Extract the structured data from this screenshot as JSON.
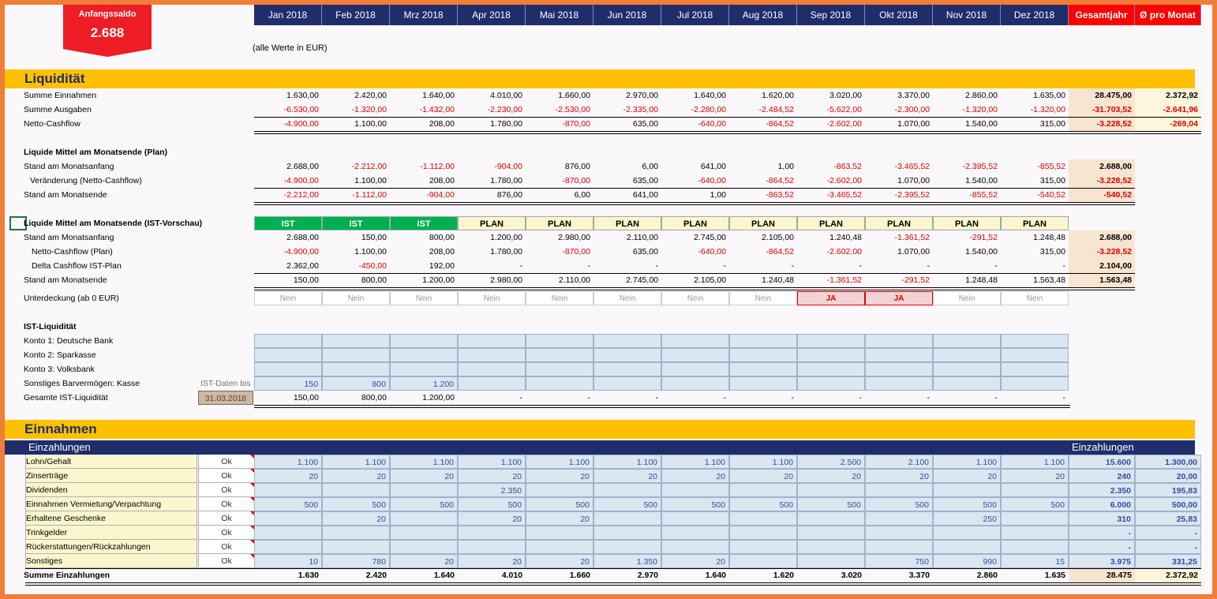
{
  "saldo": {
    "title": "Anfangssaldo",
    "value": "2.688"
  },
  "headers": [
    "Jan 2018",
    "Feb 2018",
    "Mrz 2018",
    "Apr 2018",
    "Mai 2018",
    "Jun 2018",
    "Jul 2018",
    "Aug 2018",
    "Sep 2018",
    "Okt 2018",
    "Nov 2018",
    "Dez 2018"
  ],
  "header_total": "Gesamtjahr",
  "header_avg": "Ø pro Monat",
  "note": "(alle Werte in EUR)",
  "liq": {
    "title": "Liquidität",
    "rows": [
      {
        "label": "Summe Einnahmen",
        "vals": [
          "1.630,00",
          "2.420,00",
          "1.640,00",
          "4.010,00",
          "1.660,00",
          "2.970,00",
          "1.640,00",
          "1.620,00",
          "3.020,00",
          "3.370,00",
          "2.860,00",
          "1.635,00"
        ],
        "total": "28.475,00",
        "avg": "2.372,92"
      },
      {
        "label": "Summe Ausgaben",
        "vals": [
          "-6.530,00",
          "-1.320,00",
          "-1.432,00",
          "-2.230,00",
          "-2.530,00",
          "-2.335,00",
          "-2.280,00",
          "-2.484,52",
          "-5.622,00",
          "-2.300,00",
          "-1.320,00",
          "-1.320,00"
        ],
        "total": "-31.703,52",
        "avg": "-2.641,96"
      },
      {
        "label": "Netto-Cashflow",
        "vals": [
          "-4.900,00",
          "1.100,00",
          "208,00",
          "1.780,00",
          "-870,00",
          "635,00",
          "-640,00",
          "-864,52",
          "-2.602,00",
          "1.070,00",
          "1.540,00",
          "315,00"
        ],
        "total": "-3.228,52",
        "avg": "-269,04"
      }
    ]
  },
  "plan": {
    "title": "Liquide Mittel am Monatsende (Plan)",
    "rows": [
      {
        "label": "Stand am Monatsanfang",
        "vals": [
          "2.688,00",
          "-2.212,00",
          "-1.112,00",
          "-904,00",
          "876,00",
          "6,00",
          "641,00",
          "1,00",
          "-863,52",
          "-3.465,52",
          "-2.395,52",
          "-855,52"
        ],
        "total": "2.688,00"
      },
      {
        "label": "Veränderung (Netto-Cashflow)",
        "vals": [
          "-4.900,00",
          "1.100,00",
          "208,00",
          "1.780,00",
          "-870,00",
          "635,00",
          "-640,00",
          "-864,52",
          "-2.602,00",
          "1.070,00",
          "1.540,00",
          "315,00"
        ],
        "total": "-3.228,52"
      },
      {
        "label": "Stand am Monatsende",
        "vals": [
          "-2.212,00",
          "-1.112,00",
          "-904,00",
          "876,00",
          "6,00",
          "641,00",
          "1,00",
          "-863,52",
          "-3.465,52",
          "-2.395,52",
          "-855,52",
          "-540,52"
        ],
        "total": "-540,52"
      }
    ]
  },
  "vorschau": {
    "title": "Liquide Mittel am Monatsende (IST-Vorschau)",
    "status": [
      "IST",
      "IST",
      "IST",
      "PLAN",
      "PLAN",
      "PLAN",
      "PLAN",
      "PLAN",
      "PLAN",
      "PLAN",
      "PLAN",
      "PLAN"
    ],
    "rows": [
      {
        "label": "Stand am Monatsanfang",
        "vals": [
          "2.688,00",
          "150,00",
          "800,00",
          "1.200,00",
          "2.980,00",
          "2.110,00",
          "2.745,00",
          "2.105,00",
          "1.240,48",
          "-1.361,52",
          "-291,52",
          "1.248,48"
        ],
        "total": "2.688,00"
      },
      {
        "label": "Netto-Cashflow (Plan)",
        "vals": [
          "-4.900,00",
          "1.100,00",
          "208,00",
          "1.780,00",
          "-870,00",
          "635,00",
          "-640,00",
          "-864,52",
          "-2.602,00",
          "1.070,00",
          "1.540,00",
          "315,00"
        ],
        "total": "-3.228,52"
      },
      {
        "label": "Delta Cashflow IST-Plan",
        "vals": [
          "2.362,00",
          "-450,00",
          "192,00",
          "-",
          "-",
          "-",
          "-",
          "-",
          "-",
          "-",
          "-",
          "-"
        ],
        "total": "2.104,00"
      },
      {
        "label": "Stand am Monatsende",
        "vals": [
          "150,00",
          "800,00",
          "1.200,00",
          "2.980,00",
          "2.110,00",
          "2.745,00",
          "2.105,00",
          "1.240,48",
          "-1.361,52",
          "-291,52",
          "1.248,48",
          "1.563,48"
        ],
        "total": "1.563,48"
      }
    ],
    "unter_label": "Unterdeckung (ab 0  EUR)",
    "unter": [
      "Nein",
      "Nein",
      "Nein",
      "Nein",
      "Nein",
      "Nein",
      "Nein",
      "Nein",
      "JA",
      "JA",
      "Nein",
      "Nein"
    ]
  },
  "ist": {
    "title": "IST-Liquidität",
    "konten": [
      "Konto 1: Deutsche Bank",
      "Konto 2: Sparkasse",
      "Konto 3: Volksbank"
    ],
    "kasse_label": "Sonstiges Barvermögen: Kasse",
    "kasse_hint": "IST-Daten bis",
    "kasse": [
      "150",
      "800",
      "1.200",
      "",
      "",
      "",
      "",
      "",
      "",
      "",
      "",
      ""
    ],
    "gesamt_label": "Gesamte IST-Liquidität",
    "date": "31.03.2018",
    "gesamt": [
      "150,00",
      "800,00",
      "1.200,00",
      "-",
      "-",
      "-",
      "-",
      "-",
      "-",
      "-",
      "-",
      "-"
    ]
  },
  "einnahmen": {
    "title": "Einnahmen",
    "sub": "Einzahlungen",
    "sub_right": "Einzahlungen",
    "ok": "Ok",
    "rows": [
      {
        "label": "Lohn/Gehalt",
        "vals": [
          "1.100",
          "1.100",
          "1.100",
          "1.100",
          "1.100",
          "1.100",
          "1.100",
          "1.100",
          "2.500",
          "2.100",
          "1.100",
          "1.100"
        ],
        "total": "15.600",
        "avg": "1.300,00"
      },
      {
        "label": "Zinserträge",
        "vals": [
          "20",
          "20",
          "20",
          "20",
          "20",
          "20",
          "20",
          "20",
          "20",
          "20",
          "20",
          "20"
        ],
        "total": "240",
        "avg": "20,00"
      },
      {
        "label": "Dividenden",
        "vals": [
          "",
          "",
          "",
          "2.350",
          "",
          "",
          "",
          "",
          "",
          "",
          "",
          ""
        ],
        "total": "2.350",
        "avg": "195,83"
      },
      {
        "label": "Einnahmen Vermietung/Verpachtung",
        "vals": [
          "500",
          "500",
          "500",
          "500",
          "500",
          "500",
          "500",
          "500",
          "500",
          "500",
          "500",
          "500"
        ],
        "total": "6.000",
        "avg": "500,00"
      },
      {
        "label": "Erhaltene Geschenke",
        "vals": [
          "",
          "20",
          "",
          "20",
          "20",
          "",
          "",
          "",
          "",
          "",
          "250",
          ""
        ],
        "total": "310",
        "avg": "25,83"
      },
      {
        "label": "Trinkgelder",
        "vals": [
          "",
          "",
          "",
          "",
          "",
          "",
          "",
          "",
          "",
          "",
          "",
          ""
        ],
        "total": "-",
        "avg": "-"
      },
      {
        "label": "Rückerstattungen/Rückzahlungen",
        "vals": [
          "",
          "",
          "",
          "",
          "",
          "",
          "",
          "",
          "",
          "",
          "",
          ""
        ],
        "total": "-",
        "avg": "-"
      },
      {
        "label": "Sonstiges",
        "vals": [
          "10",
          "780",
          "20",
          "20",
          "20",
          "1.350",
          "20",
          "",
          "",
          "750",
          "990",
          "15"
        ],
        "total": "3.975",
        "avg": "331,25"
      }
    ],
    "sum": {
      "label": "Summe Einzahlungen",
      "vals": [
        "1.630",
        "2.420",
        "1.640",
        "4.010",
        "1.660",
        "2.970",
        "1.640",
        "1.620",
        "3.020",
        "3.370",
        "2.860",
        "1.635"
      ],
      "total": "28.475",
      "avg": "2.372,92"
    }
  }
}
